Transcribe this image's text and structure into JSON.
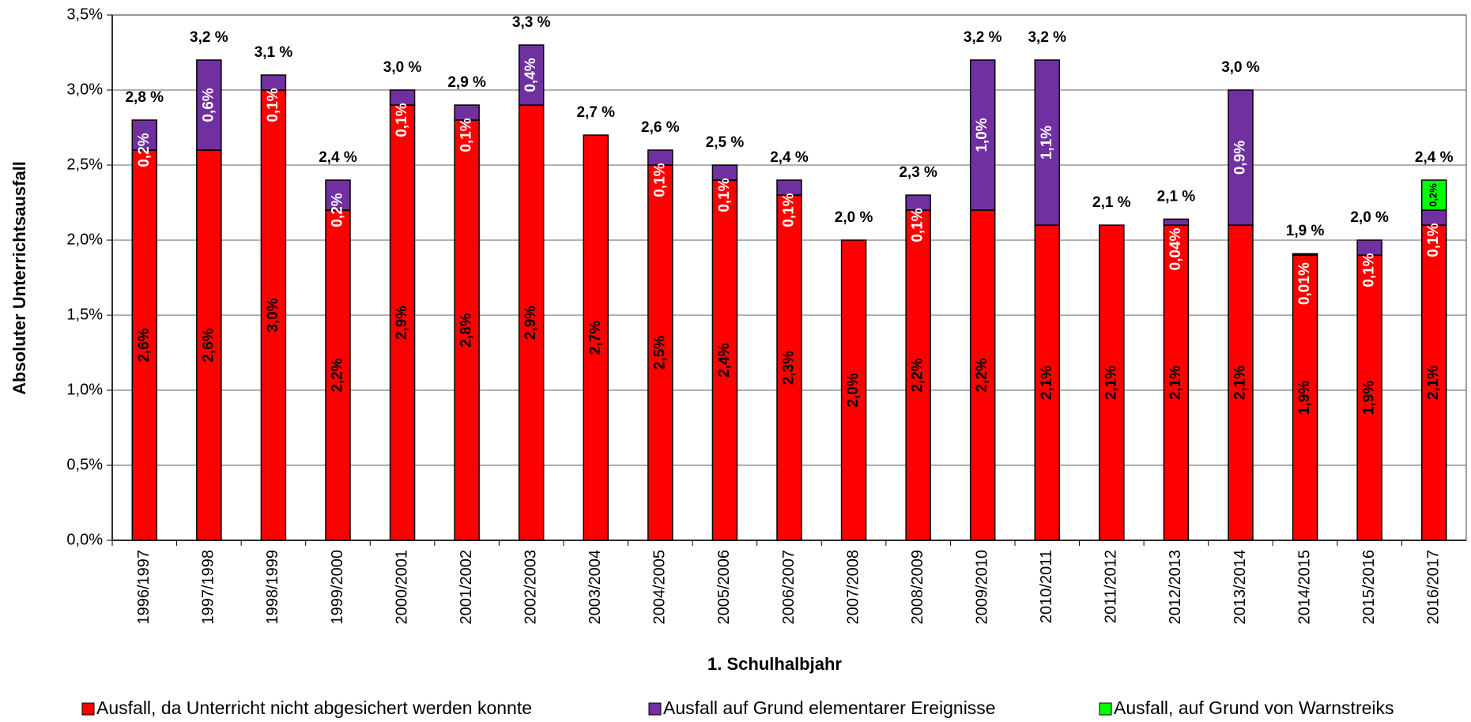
{
  "chart_data": {
    "type": "bar",
    "stacked": true,
    "x_label": "1. Schulhalbjahr",
    "y_label": "Absoluter Unterrichtsausfall",
    "categories": [
      "1996/1997",
      "1997/1998",
      "1998/1999",
      "1999/2000",
      "2000/2001",
      "2001/2002",
      "2002/2003",
      "2003/2004",
      "2004/2005",
      "2005/2006",
      "2006/2007",
      "2007/2008",
      "2008/2009",
      "2009/2010",
      "2010/2011",
      "2011/2012",
      "2012/2013",
      "2013/2014",
      "2014/2015",
      "2015/2016",
      "2016/2017"
    ],
    "series": [
      {
        "name": "Ausfall, da Unterricht nicht abgesichert werden konnte",
        "color": "#ff0000",
        "values": [
          2.6,
          2.6,
          3.0,
          2.2,
          2.9,
          2.8,
          2.9,
          2.7,
          2.5,
          2.4,
          2.3,
          2.0,
          2.2,
          2.2,
          2.1,
          2.1,
          2.1,
          2.1,
          1.9,
          1.9,
          2.1
        ],
        "value_labels": [
          "2,6%",
          "2,6%",
          "3,0%",
          "2,2%",
          "2,9%",
          "2,8%",
          "2,9%",
          "2,7%",
          "2,5%",
          "2,4%",
          "2,3%",
          "2,0%",
          "2,2%",
          "2,2%",
          "2,1%",
          "2,1%",
          "2,1%",
          "2,1%",
          "1,9%",
          "1,9%",
          "2,1%"
        ]
      },
      {
        "name": "Ausfall auf Grund elementarer Ereignisse",
        "color": "#7030a0",
        "values": [
          0.2,
          0.6,
          0.1,
          0.2,
          0.1,
          0.1,
          0.4,
          null,
          0.1,
          0.1,
          0.1,
          null,
          0.1,
          1.0,
          1.1,
          null,
          0.04,
          0.9,
          0.01,
          0.1,
          0.1
        ],
        "value_labels": [
          "0,2%",
          "0,6%",
          "0,1%",
          "0,2%",
          "0,1%",
          "0,1%",
          "0,4%",
          null,
          "0,1%",
          "0,1%",
          "0,1%",
          null,
          "0,1%",
          "1,0%",
          "1,1%",
          null,
          "0,04%",
          "0,9%",
          "0,01%",
          "0,1%",
          "0,1%"
        ]
      },
      {
        "name": "Ausfall, auf Grund von Warnstreiks",
        "color": "#00ff00",
        "values": [
          null,
          null,
          null,
          null,
          null,
          null,
          null,
          null,
          null,
          null,
          null,
          null,
          null,
          null,
          null,
          null,
          null,
          null,
          null,
          null,
          0.2
        ],
        "value_labels": [
          null,
          null,
          null,
          null,
          null,
          null,
          null,
          null,
          null,
          null,
          null,
          null,
          null,
          null,
          null,
          null,
          null,
          null,
          null,
          null,
          "0,2%"
        ]
      }
    ],
    "total_labels": [
      "2,8 %",
      "3,2 %",
      "3,1 %",
      "2,4 %",
      "3,0 %",
      "2,9 %",
      "3,3 %",
      "2,7 %",
      "2,6 %",
      "2,5 %",
      "2,4 %",
      "2,0 %",
      "2,3 %",
      "3,2 %",
      "3,2 %",
      "2,1 %",
      "2,1 %",
      "3,0 %",
      "1,9 %",
      "2,0 %",
      "2,4 %"
    ],
    "ylim": [
      0,
      3.5
    ],
    "yticks": [
      {
        "value": 0,
        "label": "0,0%"
      },
      {
        "value": 0.5,
        "label": "0,5%"
      },
      {
        "value": 1,
        "label": "1,0%"
      },
      {
        "value": 1.5,
        "label": "1,5%"
      },
      {
        "value": 2,
        "label": "2,0%"
      },
      {
        "value": 2.5,
        "label": "2,5%"
      },
      {
        "value": 3,
        "label": "3,0%"
      },
      {
        "value": 3.5,
        "label": "3,5%"
      }
    ],
    "grid": true,
    "legend": "bottom"
  }
}
